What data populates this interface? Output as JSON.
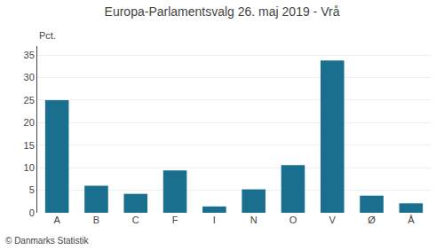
{
  "chart_data": {
    "type": "bar",
    "title": "Europa-Parlamentsvalg 26. maj 2019 - Vrå",
    "ylabel": "Pct.",
    "annotations": [
      "© Danmarks Statistik"
    ],
    "categories": [
      "A",
      "B",
      "C",
      "F",
      "I",
      "N",
      "O",
      "V",
      "Ø",
      "Å"
    ],
    "values": [
      25.0,
      6.0,
      4.2,
      9.4,
      1.4,
      5.2,
      10.6,
      33.8,
      3.8,
      2.1
    ],
    "color": "#1a6e8e",
    "ylim": [
      0,
      37
    ],
    "yticks": [
      0,
      5,
      10,
      15,
      20,
      25,
      30,
      35
    ],
    "grid": true
  }
}
